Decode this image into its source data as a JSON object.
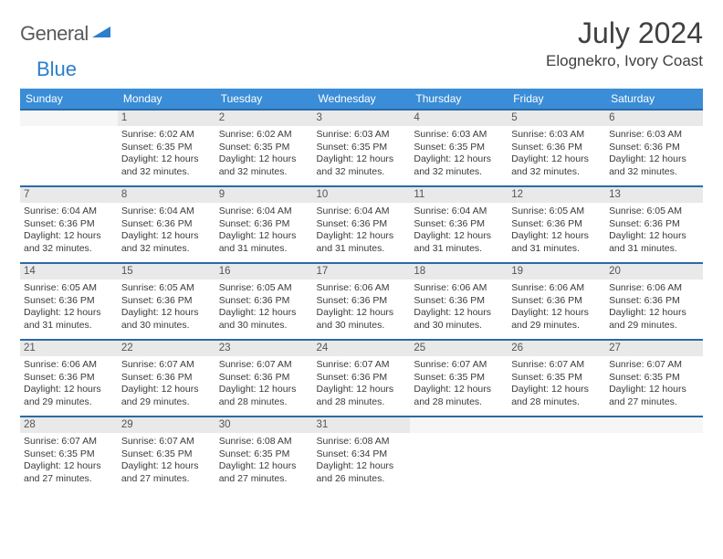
{
  "logo": {
    "word1": "General",
    "word2": "Blue"
  },
  "title": "July 2024",
  "location": "Elognekro, Ivory Coast",
  "colors": {
    "header_bg": "#3a8dd6",
    "header_text": "#ffffff",
    "daynum_bg": "#e9e9e9",
    "row_border": "#2b6aa8",
    "text": "#3a3a3a",
    "logo_gray": "#5a5a5a",
    "logo_blue": "#2b7fcc"
  },
  "weekdays": [
    "Sunday",
    "Monday",
    "Tuesday",
    "Wednesday",
    "Thursday",
    "Friday",
    "Saturday"
  ],
  "weeks": [
    {
      "nums": [
        "",
        "1",
        "2",
        "3",
        "4",
        "5",
        "6"
      ],
      "cells": [
        null,
        {
          "sr": "Sunrise: 6:02 AM",
          "ss": "Sunset: 6:35 PM",
          "dl": "Daylight: 12 hours and 32 minutes."
        },
        {
          "sr": "Sunrise: 6:02 AM",
          "ss": "Sunset: 6:35 PM",
          "dl": "Daylight: 12 hours and 32 minutes."
        },
        {
          "sr": "Sunrise: 6:03 AM",
          "ss": "Sunset: 6:35 PM",
          "dl": "Daylight: 12 hours and 32 minutes."
        },
        {
          "sr": "Sunrise: 6:03 AM",
          "ss": "Sunset: 6:35 PM",
          "dl": "Daylight: 12 hours and 32 minutes."
        },
        {
          "sr": "Sunrise: 6:03 AM",
          "ss": "Sunset: 6:36 PM",
          "dl": "Daylight: 12 hours and 32 minutes."
        },
        {
          "sr": "Sunrise: 6:03 AM",
          "ss": "Sunset: 6:36 PM",
          "dl": "Daylight: 12 hours and 32 minutes."
        }
      ]
    },
    {
      "nums": [
        "7",
        "8",
        "9",
        "10",
        "11",
        "12",
        "13"
      ],
      "cells": [
        {
          "sr": "Sunrise: 6:04 AM",
          "ss": "Sunset: 6:36 PM",
          "dl": "Daylight: 12 hours and 32 minutes."
        },
        {
          "sr": "Sunrise: 6:04 AM",
          "ss": "Sunset: 6:36 PM",
          "dl": "Daylight: 12 hours and 32 minutes."
        },
        {
          "sr": "Sunrise: 6:04 AM",
          "ss": "Sunset: 6:36 PM",
          "dl": "Daylight: 12 hours and 31 minutes."
        },
        {
          "sr": "Sunrise: 6:04 AM",
          "ss": "Sunset: 6:36 PM",
          "dl": "Daylight: 12 hours and 31 minutes."
        },
        {
          "sr": "Sunrise: 6:04 AM",
          "ss": "Sunset: 6:36 PM",
          "dl": "Daylight: 12 hours and 31 minutes."
        },
        {
          "sr": "Sunrise: 6:05 AM",
          "ss": "Sunset: 6:36 PM",
          "dl": "Daylight: 12 hours and 31 minutes."
        },
        {
          "sr": "Sunrise: 6:05 AM",
          "ss": "Sunset: 6:36 PM",
          "dl": "Daylight: 12 hours and 31 minutes."
        }
      ]
    },
    {
      "nums": [
        "14",
        "15",
        "16",
        "17",
        "18",
        "19",
        "20"
      ],
      "cells": [
        {
          "sr": "Sunrise: 6:05 AM",
          "ss": "Sunset: 6:36 PM",
          "dl": "Daylight: 12 hours and 31 minutes."
        },
        {
          "sr": "Sunrise: 6:05 AM",
          "ss": "Sunset: 6:36 PM",
          "dl": "Daylight: 12 hours and 30 minutes."
        },
        {
          "sr": "Sunrise: 6:05 AM",
          "ss": "Sunset: 6:36 PM",
          "dl": "Daylight: 12 hours and 30 minutes."
        },
        {
          "sr": "Sunrise: 6:06 AM",
          "ss": "Sunset: 6:36 PM",
          "dl": "Daylight: 12 hours and 30 minutes."
        },
        {
          "sr": "Sunrise: 6:06 AM",
          "ss": "Sunset: 6:36 PM",
          "dl": "Daylight: 12 hours and 30 minutes."
        },
        {
          "sr": "Sunrise: 6:06 AM",
          "ss": "Sunset: 6:36 PM",
          "dl": "Daylight: 12 hours and 29 minutes."
        },
        {
          "sr": "Sunrise: 6:06 AM",
          "ss": "Sunset: 6:36 PM",
          "dl": "Daylight: 12 hours and 29 minutes."
        }
      ]
    },
    {
      "nums": [
        "21",
        "22",
        "23",
        "24",
        "25",
        "26",
        "27"
      ],
      "cells": [
        {
          "sr": "Sunrise: 6:06 AM",
          "ss": "Sunset: 6:36 PM",
          "dl": "Daylight: 12 hours and 29 minutes."
        },
        {
          "sr": "Sunrise: 6:07 AM",
          "ss": "Sunset: 6:36 PM",
          "dl": "Daylight: 12 hours and 29 minutes."
        },
        {
          "sr": "Sunrise: 6:07 AM",
          "ss": "Sunset: 6:36 PM",
          "dl": "Daylight: 12 hours and 28 minutes."
        },
        {
          "sr": "Sunrise: 6:07 AM",
          "ss": "Sunset: 6:36 PM",
          "dl": "Daylight: 12 hours and 28 minutes."
        },
        {
          "sr": "Sunrise: 6:07 AM",
          "ss": "Sunset: 6:35 PM",
          "dl": "Daylight: 12 hours and 28 minutes."
        },
        {
          "sr": "Sunrise: 6:07 AM",
          "ss": "Sunset: 6:35 PM",
          "dl": "Daylight: 12 hours and 28 minutes."
        },
        {
          "sr": "Sunrise: 6:07 AM",
          "ss": "Sunset: 6:35 PM",
          "dl": "Daylight: 12 hours and 27 minutes."
        }
      ]
    },
    {
      "nums": [
        "28",
        "29",
        "30",
        "31",
        "",
        "",
        ""
      ],
      "cells": [
        {
          "sr": "Sunrise: 6:07 AM",
          "ss": "Sunset: 6:35 PM",
          "dl": "Daylight: 12 hours and 27 minutes."
        },
        {
          "sr": "Sunrise: 6:07 AM",
          "ss": "Sunset: 6:35 PM",
          "dl": "Daylight: 12 hours and 27 minutes."
        },
        {
          "sr": "Sunrise: 6:08 AM",
          "ss": "Sunset: 6:35 PM",
          "dl": "Daylight: 12 hours and 27 minutes."
        },
        {
          "sr": "Sunrise: 6:08 AM",
          "ss": "Sunset: 6:34 PM",
          "dl": "Daylight: 12 hours and 26 minutes."
        },
        null,
        null,
        null
      ]
    }
  ]
}
